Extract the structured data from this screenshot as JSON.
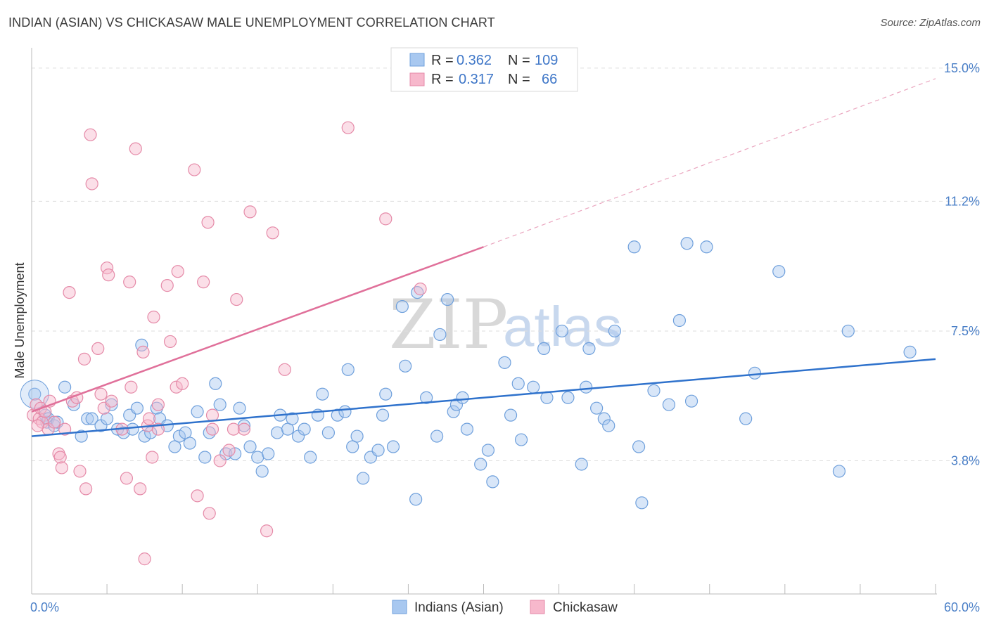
{
  "title": "INDIAN (ASIAN) VS CHICKASAW MALE UNEMPLOYMENT CORRELATION CHART",
  "source": "Source: ZipAtlas.com",
  "watermark": {
    "zip": "ZIP",
    "atlas": "atlas"
  },
  "chart_data": {
    "type": "scatter",
    "ylabel": "Male Unemployment",
    "xlabel": "",
    "xlim": [
      0,
      60
    ],
    "ylim": [
      0,
      15.7
    ],
    "x_tick_labels": [
      {
        "value": 0,
        "label": "0.0%"
      },
      {
        "value": 60,
        "label": "60.0%"
      }
    ],
    "y_tick_labels": [
      {
        "value": 3.8,
        "label": "3.8%"
      },
      {
        "value": 7.5,
        "label": "7.5%"
      },
      {
        "value": 11.2,
        "label": "11.2%"
      },
      {
        "value": 15.0,
        "label": "15.0%"
      }
    ],
    "legend": [
      {
        "name": "Indians (Asian)",
        "r_label": "R =",
        "r": "0.362",
        "n_label": "N =",
        "n": "109",
        "color": "#a8c8f0",
        "stroke": "#6fa0dc"
      },
      {
        "name": "Chickasaw",
        "r_label": "R =",
        "r": "0.317",
        "n_label": "N =",
        "n": "66",
        "color": "#f7b8cc",
        "stroke": "#e58aa8"
      }
    ],
    "series": [
      {
        "name": "Indians (Asian)",
        "trend": {
          "x0": 0,
          "y0": 4.5,
          "x1": 60,
          "y1": 6.7,
          "color": "#2f72cc"
        },
        "points": [
          [
            0.2,
            5.7
          ],
          [
            0.9,
            5.1
          ],
          [
            1.0,
            4.9
          ],
          [
            1.1,
            5.0
          ],
          [
            1.5,
            4.8
          ],
          [
            1.7,
            4.9
          ],
          [
            2.2,
            5.9
          ],
          [
            2.8,
            5.4
          ],
          [
            3.3,
            4.5
          ],
          [
            3.7,
            5.0
          ],
          [
            4.0,
            5.0
          ],
          [
            4.6,
            4.8
          ],
          [
            5.0,
            5.0
          ],
          [
            5.3,
            5.4
          ],
          [
            5.7,
            4.7
          ],
          [
            6.1,
            4.6
          ],
          [
            6.5,
            5.1
          ],
          [
            6.7,
            4.7
          ],
          [
            7.0,
            5.3
          ],
          [
            7.3,
            7.1
          ],
          [
            7.5,
            4.5
          ],
          [
            7.9,
            4.6
          ],
          [
            8.3,
            5.3
          ],
          [
            8.5,
            5.0
          ],
          [
            9.0,
            4.8
          ],
          [
            9.5,
            4.2
          ],
          [
            9.8,
            4.5
          ],
          [
            10.2,
            4.6
          ],
          [
            10.5,
            4.3
          ],
          [
            11.0,
            5.2
          ],
          [
            11.5,
            3.9
          ],
          [
            11.8,
            4.6
          ],
          [
            12.2,
            6.0
          ],
          [
            12.5,
            5.4
          ],
          [
            12.9,
            4.0
          ],
          [
            13.5,
            4.0
          ],
          [
            13.8,
            5.3
          ],
          [
            14.1,
            4.8
          ],
          [
            14.5,
            4.2
          ],
          [
            15.0,
            3.9
          ],
          [
            15.3,
            3.5
          ],
          [
            15.7,
            4.0
          ],
          [
            16.3,
            4.6
          ],
          [
            16.5,
            5.1
          ],
          [
            17.0,
            4.7
          ],
          [
            17.3,
            5.0
          ],
          [
            17.7,
            4.5
          ],
          [
            18.1,
            4.7
          ],
          [
            18.5,
            3.9
          ],
          [
            19.0,
            5.1
          ],
          [
            19.3,
            5.7
          ],
          [
            19.7,
            4.6
          ],
          [
            20.3,
            5.1
          ],
          [
            20.8,
            5.2
          ],
          [
            21.0,
            6.4
          ],
          [
            21.3,
            4.2
          ],
          [
            21.6,
            4.5
          ],
          [
            22.0,
            3.3
          ],
          [
            22.5,
            3.9
          ],
          [
            23.0,
            4.1
          ],
          [
            23.3,
            5.1
          ],
          [
            23.5,
            5.7
          ],
          [
            24.0,
            4.2
          ],
          [
            24.6,
            8.2
          ],
          [
            24.8,
            6.5
          ],
          [
            25.5,
            2.7
          ],
          [
            25.6,
            8.6
          ],
          [
            26.2,
            5.6
          ],
          [
            26.9,
            4.5
          ],
          [
            27.1,
            7.4
          ],
          [
            27.6,
            8.4
          ],
          [
            28.0,
            5.2
          ],
          [
            28.2,
            5.4
          ],
          [
            28.6,
            5.6
          ],
          [
            28.9,
            4.7
          ],
          [
            29.8,
            3.7
          ],
          [
            30.3,
            4.1
          ],
          [
            30.6,
            3.2
          ],
          [
            31.4,
            6.6
          ],
          [
            31.8,
            5.1
          ],
          [
            32.3,
            6.0
          ],
          [
            32.5,
            4.4
          ],
          [
            33.3,
            5.9
          ],
          [
            34.0,
            7.0
          ],
          [
            34.2,
            5.6
          ],
          [
            35.2,
            7.5
          ],
          [
            35.6,
            5.6
          ],
          [
            36.5,
            3.7
          ],
          [
            36.8,
            5.9
          ],
          [
            37.0,
            7.0
          ],
          [
            37.5,
            5.3
          ],
          [
            38.0,
            5.0
          ],
          [
            38.3,
            4.8
          ],
          [
            38.7,
            7.5
          ],
          [
            40.0,
            9.9
          ],
          [
            40.3,
            4.2
          ],
          [
            40.5,
            2.6
          ],
          [
            41.3,
            5.8
          ],
          [
            42.3,
            5.4
          ],
          [
            43.0,
            7.8
          ],
          [
            43.5,
            10.0
          ],
          [
            43.8,
            5.5
          ],
          [
            44.8,
            9.9
          ],
          [
            47.4,
            5.0
          ],
          [
            48.0,
            6.3
          ],
          [
            49.6,
            9.2
          ],
          [
            53.6,
            3.5
          ],
          [
            54.2,
            7.5
          ],
          [
            58.3,
            6.9
          ]
        ]
      },
      {
        "name": "Chickasaw",
        "trend": {
          "x0": 0,
          "y0": 5.2,
          "x1": 30,
          "y1": 9.9,
          "color": "#e0709a"
        },
        "trend_extension": {
          "x0": 30,
          "y0": 9.9,
          "x1": 60,
          "y1": 14.7
        },
        "points": [
          [
            0.1,
            5.1
          ],
          [
            0.3,
            5.4
          ],
          [
            0.5,
            5.0
          ],
          [
            0.6,
            5.3
          ],
          [
            0.7,
            4.9
          ],
          [
            0.9,
            5.2
          ],
          [
            1.1,
            4.7
          ],
          [
            1.2,
            5.5
          ],
          [
            1.5,
            4.9
          ],
          [
            1.8,
            4.0
          ],
          [
            1.9,
            3.9
          ],
          [
            2.0,
            3.6
          ],
          [
            2.2,
            4.7
          ],
          [
            2.5,
            8.6
          ],
          [
            2.7,
            5.5
          ],
          [
            3.0,
            5.6
          ],
          [
            3.2,
            3.5
          ],
          [
            3.5,
            6.7
          ],
          [
            3.6,
            3.0
          ],
          [
            3.9,
            13.1
          ],
          [
            4.0,
            11.7
          ],
          [
            4.4,
            7.0
          ],
          [
            4.6,
            5.7
          ],
          [
            4.8,
            5.3
          ],
          [
            5.0,
            9.3
          ],
          [
            5.1,
            9.1
          ],
          [
            5.3,
            5.5
          ],
          [
            6.0,
            4.7
          ],
          [
            6.3,
            3.3
          ],
          [
            6.5,
            8.9
          ],
          [
            6.6,
            5.9
          ],
          [
            6.9,
            12.7
          ],
          [
            7.2,
            3.0
          ],
          [
            7.4,
            6.9
          ],
          [
            7.5,
            1.0
          ],
          [
            7.7,
            4.8
          ],
          [
            7.8,
            5.0
          ],
          [
            8.0,
            3.9
          ],
          [
            8.1,
            7.9
          ],
          [
            8.4,
            4.7
          ],
          [
            8.4,
            5.4
          ],
          [
            9.0,
            8.8
          ],
          [
            9.2,
            7.2
          ],
          [
            9.6,
            5.9
          ],
          [
            9.7,
            9.2
          ],
          [
            10.0,
            6.0
          ],
          [
            10.8,
            12.1
          ],
          [
            11.0,
            2.8
          ],
          [
            11.4,
            8.9
          ],
          [
            11.7,
            10.6
          ],
          [
            11.8,
            2.3
          ],
          [
            12.0,
            5.1
          ],
          [
            12.0,
            4.7
          ],
          [
            12.5,
            3.8
          ],
          [
            13.1,
            4.1
          ],
          [
            13.4,
            4.7
          ],
          [
            13.6,
            8.4
          ],
          [
            14.1,
            4.7
          ],
          [
            14.5,
            10.9
          ],
          [
            15.6,
            1.8
          ],
          [
            16.0,
            10.3
          ],
          [
            16.8,
            6.4
          ],
          [
            21.0,
            13.3
          ],
          [
            23.5,
            10.7
          ],
          [
            25.8,
            8.7
          ],
          [
            0.4,
            4.8
          ]
        ]
      }
    ]
  }
}
